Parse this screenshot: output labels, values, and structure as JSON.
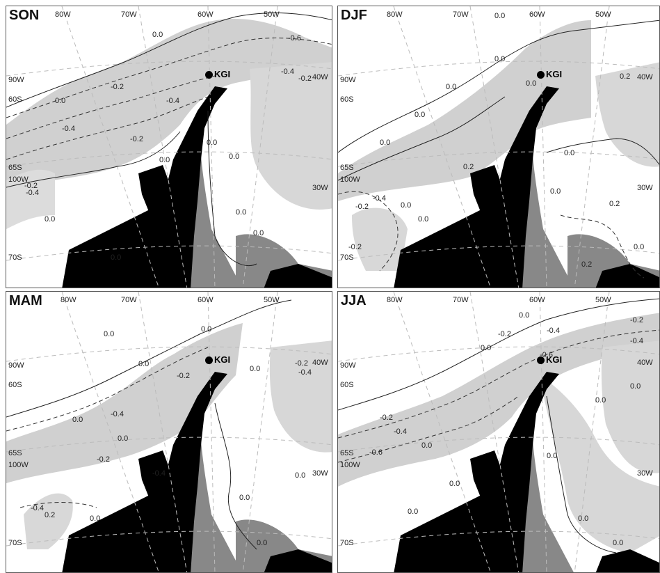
{
  "panels": [
    {
      "season": "SON",
      "lon": [
        "80W",
        "70W",
        "60W",
        "50W",
        "40W",
        "30W",
        "90W",
        "100W"
      ],
      "lat": [
        "60S",
        "65S",
        "70S"
      ],
      "station": "KGI",
      "contours": [
        "0.0",
        "-0.2",
        "-0.4",
        "-0.6",
        "-0.4",
        "-0.2",
        "-0.4",
        "-0.2",
        "-0.4",
        "0.0",
        "0.0",
        "0.0",
        "0.0",
        "0.0",
        "0.0",
        "-0.2",
        "0.0",
        "0.0"
      ]
    },
    {
      "season": "DJF",
      "lon": [
        "80W",
        "70W",
        "60W",
        "50W",
        "40W",
        "30W",
        "90W",
        "100W"
      ],
      "lat": [
        "60S",
        "65S",
        "70S"
      ],
      "station": "KGI",
      "contours": [
        "0.0",
        "0.0",
        "0.0",
        "0.0",
        "0.0",
        "0.2",
        "0.2",
        "0.0",
        "0.0",
        "-0.2",
        "-0.4",
        "0.0",
        "0.0",
        "0.2",
        "0.2",
        "0.0",
        "-0.2",
        "0.0"
      ]
    },
    {
      "season": "MAM",
      "lon": [
        "80W",
        "70W",
        "60W",
        "50W",
        "40W",
        "30W",
        "90W",
        "100W"
      ],
      "lat": [
        "60S",
        "65S",
        "70S"
      ],
      "station": "KGI",
      "contours": [
        "0.0",
        "0.0",
        "0.0",
        "-0.2",
        "-0.4",
        "-0.2",
        "-0.4",
        "0.0",
        "-0.2",
        "-0.4",
        "0.0",
        "0.0",
        "0.0",
        "0.0",
        "-0.4",
        "0.2",
        "0.0",
        "0.0"
      ]
    },
    {
      "season": "JJA",
      "lon": [
        "80W",
        "70W",
        "60W",
        "50W",
        "40W",
        "30W",
        "90W",
        "100W"
      ],
      "lat": [
        "60S",
        "65S",
        "70S"
      ],
      "station": "KGI",
      "contours": [
        "0.0",
        "-0.2",
        "-0.4",
        "-0.6",
        "-0.4",
        "-0.2",
        "-0.2",
        "-0.4",
        "-0.6",
        "0.0",
        "0.0",
        "0.0",
        "0.0",
        "0.0",
        "0.0",
        "0.0",
        "0.0",
        "0.0"
      ]
    }
  ]
}
